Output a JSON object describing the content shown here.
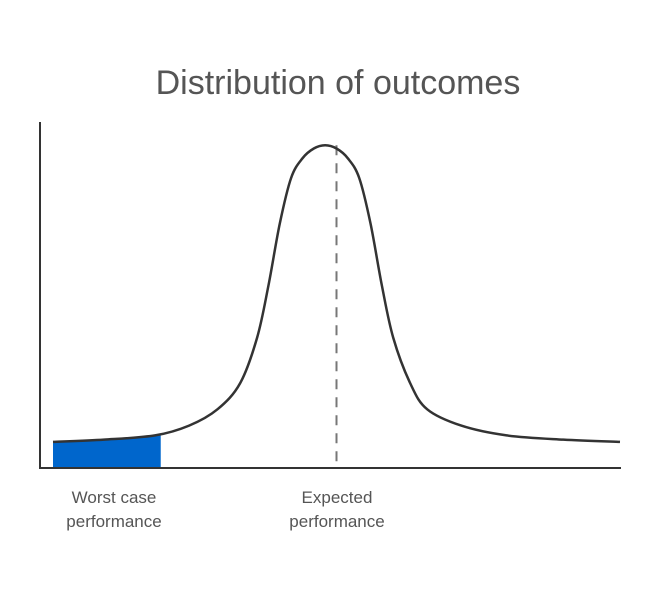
{
  "chart_data": {
    "type": "area",
    "title": "Distribution of outcomes",
    "xlabel": "",
    "ylabel": "",
    "xlim": [
      0,
      100
    ],
    "ylim": [
      0,
      100
    ],
    "grid": false,
    "legend": "none",
    "curve": {
      "x": [
        0,
        9,
        18,
        24,
        29,
        33,
        36,
        38,
        40,
        42,
        44,
        46,
        48,
        50,
        52,
        54,
        56,
        58,
        60,
        63,
        66,
        72,
        80,
        90,
        100
      ],
      "y": [
        8,
        8.7,
        10,
        13,
        18,
        26,
        40,
        56,
        75,
        89,
        95,
        98,
        99,
        98,
        95,
        89,
        75,
        56,
        40,
        26,
        18,
        13,
        10,
        8.7,
        8
      ]
    },
    "shaded_region": {
      "x_from": 0,
      "x_to": 19,
      "color": "#0066cc"
    },
    "expected_line_x": 50,
    "annotations": {
      "worst_case": [
        "Worst case",
        "performance"
      ],
      "expected": [
        "Expected",
        "performance"
      ]
    },
    "colors": {
      "curve": "#333333",
      "axis": "#333333",
      "dashed": "#777777",
      "text": "#555555"
    }
  }
}
